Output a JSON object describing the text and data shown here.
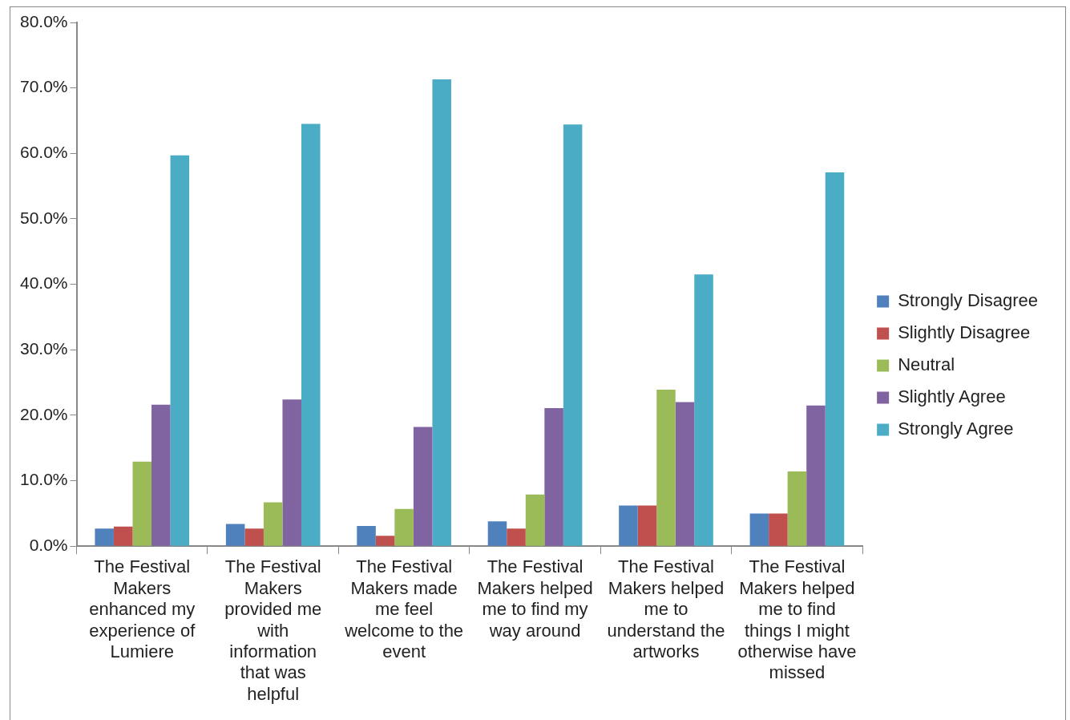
{
  "chart_data": {
    "type": "bar",
    "categories": [
      "The Festival Makers enhanced my experience of Lumiere",
      "The Festival Makers provided me with information that was helpful",
      "The Festival Makers made me feel welcome to the event",
      "The Festival Makers helped me to find my way around",
      "The Festival Makers helped me to understand the artworks",
      "The Festival Makers helped me to find things I might otherwise have missed"
    ],
    "series": [
      {
        "name": "Strongly Disagree",
        "color": "#4f81bd",
        "values": [
          2.7,
          3.4,
          3.1,
          3.8,
          6.2,
          5.0
        ]
      },
      {
        "name": "Slightly Disagree",
        "color": "#c0504d",
        "values": [
          3.0,
          2.7,
          1.6,
          2.7,
          6.2,
          5.0
        ]
      },
      {
        "name": "Neutral",
        "color": "#9bbb59",
        "values": [
          12.9,
          6.7,
          5.7,
          7.9,
          23.9,
          11.4
        ]
      },
      {
        "name": "Slightly Agree",
        "color": "#8064a2",
        "values": [
          21.6,
          22.4,
          18.2,
          21.1,
          22.0,
          21.5
        ]
      },
      {
        "name": "Strongly Agree",
        "color": "#4bacc6",
        "values": [
          59.7,
          64.5,
          71.3,
          64.4,
          41.5,
          57.1
        ]
      }
    ],
    "ylim": [
      0,
      80
    ],
    "yticks": [
      {
        "value": 0,
        "label": "0.0%"
      },
      {
        "value": 10,
        "label": "10.0%"
      },
      {
        "value": 20,
        "label": "20.0%"
      },
      {
        "value": 30,
        "label": "30.0%"
      },
      {
        "value": 40,
        "label": "40.0%"
      },
      {
        "value": 50,
        "label": "50.0%"
      },
      {
        "value": 60,
        "label": "60.0%"
      },
      {
        "value": 70,
        "label": "70.0%"
      },
      {
        "value": 80,
        "label": "80.0%"
      }
    ],
    "grid": false,
    "legend": "right"
  }
}
